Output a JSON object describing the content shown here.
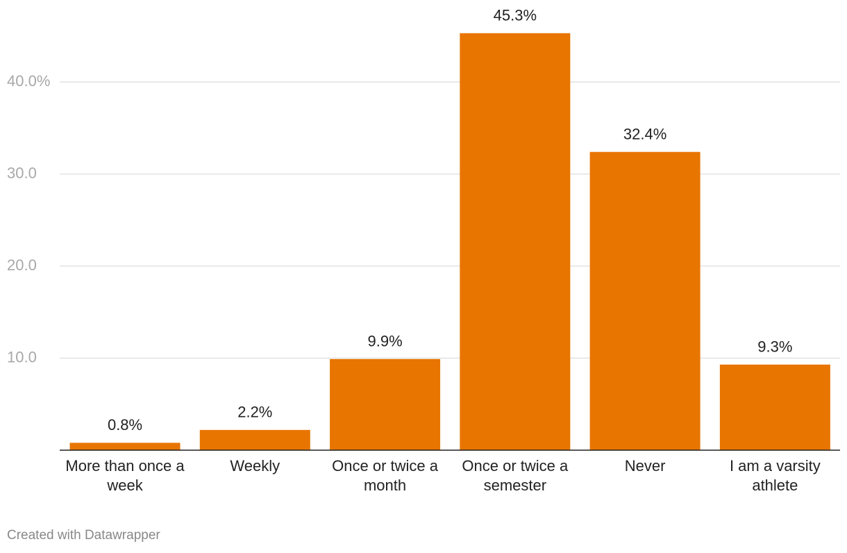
{
  "chart_data": {
    "type": "bar",
    "categories": [
      "More than once a week",
      "Weekly",
      "Once or twice a month",
      "Once or twice a semester",
      "Never",
      "I am a varsity athlete"
    ],
    "values": [
      0.8,
      2.2,
      9.9,
      45.3,
      32.4,
      9.3
    ],
    "value_labels": [
      "0.8%",
      "2.2%",
      "9.9%",
      "45.3%",
      "32.4%",
      "9.3%"
    ],
    "color": "#e87500",
    "ylim": [
      0,
      40
    ],
    "yticks": [
      {
        "value": 10,
        "label": "10.0"
      },
      {
        "value": 20,
        "label": "20.0"
      },
      {
        "value": 30,
        "label": "30.0"
      },
      {
        "value": 40,
        "label": "40.0%"
      }
    ],
    "grid": true,
    "footer": "Created with Datawrapper"
  }
}
